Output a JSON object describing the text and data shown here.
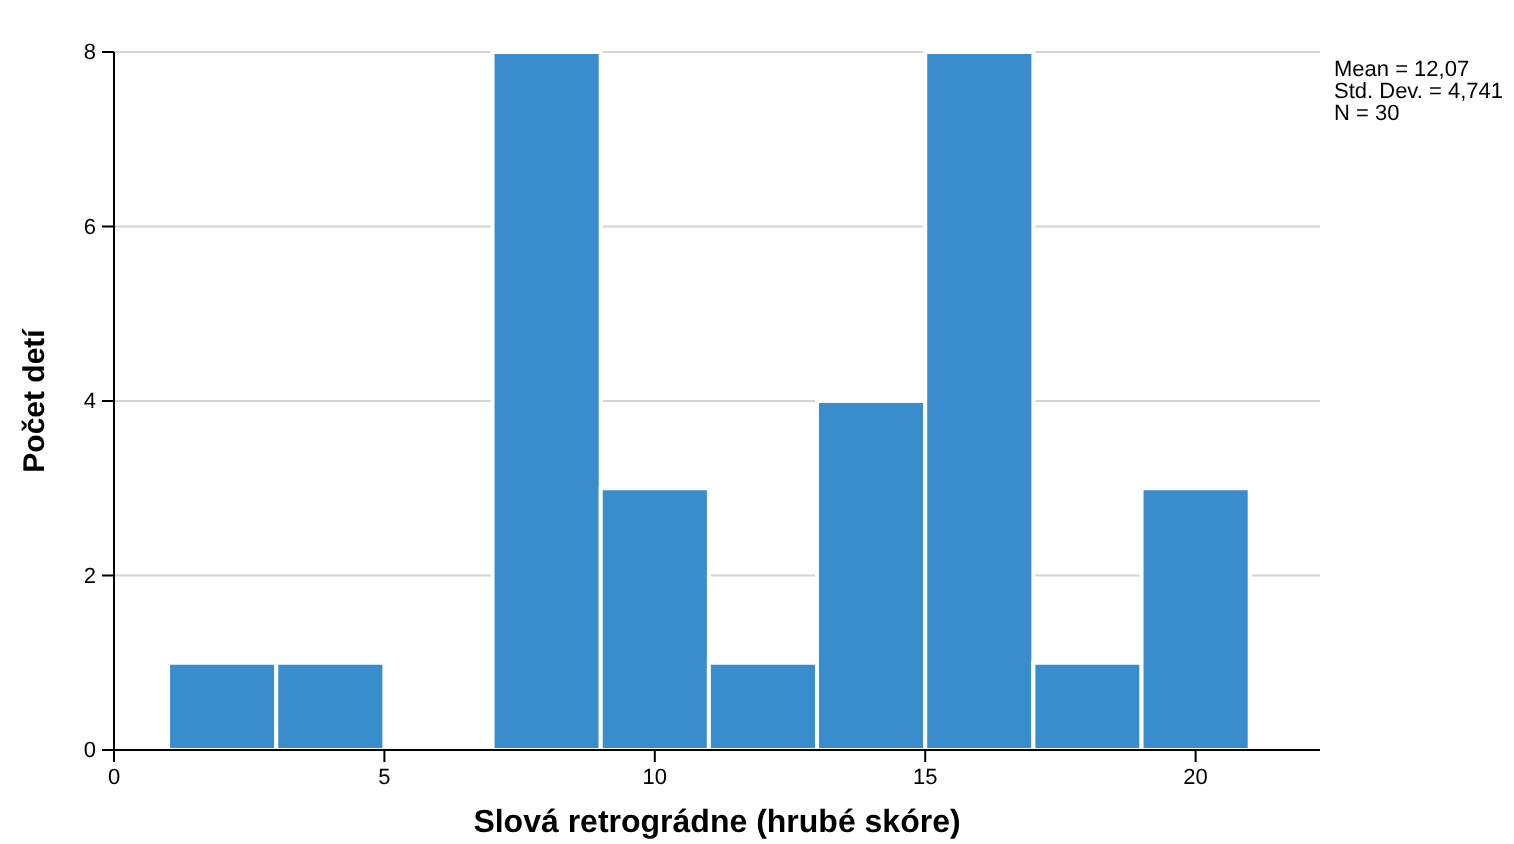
{
  "chart_data": {
    "type": "histogram",
    "xlabel": "Slová retrográdne (hrubé skóre)",
    "ylabel": "Počet detí",
    "bins": [
      1,
      3,
      5,
      7,
      9,
      11,
      13,
      15,
      17,
      19,
      21
    ],
    "values": [
      1,
      1,
      0,
      8,
      3,
      1,
      4,
      8,
      1,
      3
    ],
    "color": "#3a8dcd",
    "xlim": [
      0,
      22.3
    ],
    "xticks": [
      0,
      5,
      10,
      15,
      20
    ],
    "ylim": [
      0,
      8
    ],
    "yticks": [
      0,
      2,
      4,
      6,
      8
    ],
    "grid": "y",
    "annotations": [
      "Mean = 12,07",
      "Std. Dev. = 4,741",
      "N = 30"
    ]
  }
}
